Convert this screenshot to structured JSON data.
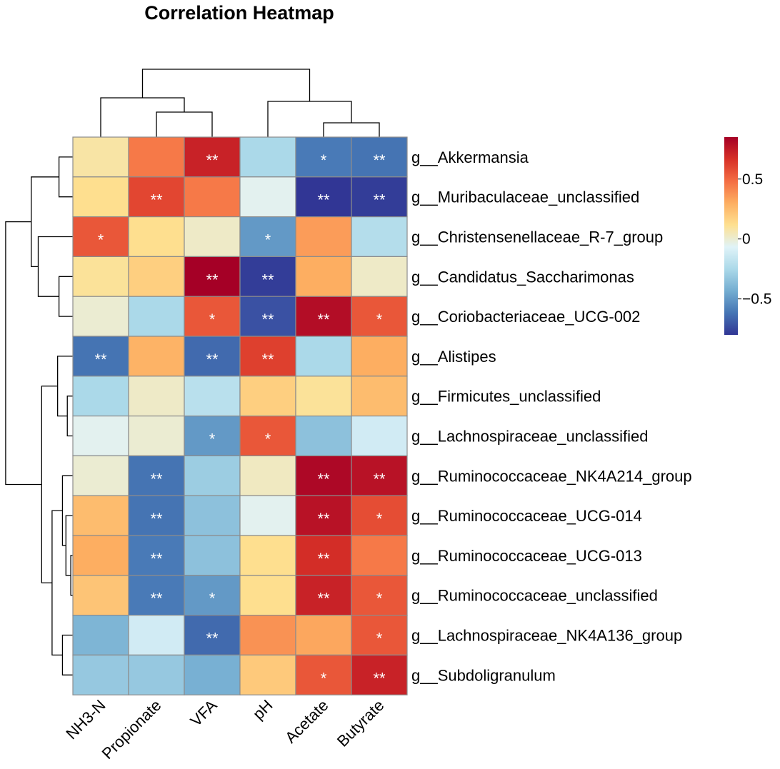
{
  "chart_data": {
    "type": "heatmap",
    "title": "Correlation Heatmap",
    "columns": [
      "NH3-N",
      "Propionate",
      "VFA",
      "pH",
      "Acetate",
      "Butyrate"
    ],
    "rows": [
      "g__Akkermansia",
      "g__Muribaculaceae_unclassified",
      "g__Christensenellaceae_R-7_group",
      "g__Candidatus_Saccharimonas",
      "g__Coriobacteriaceae_UCG-002",
      "g__Alistipes",
      "g__Firmicutes_unclassified",
      "g__Lachnospiraceae_unclassified",
      "g__Ruminococcaceae_NK4A214_group",
      "g__Ruminococcaceae_UCG-014",
      "g__Ruminococcaceae_UCG-013",
      "g__Ruminococcaceae_unclassified",
      "g__Lachnospiraceae_NK4A136_group",
      "g__Subdoligranulum"
    ],
    "values": [
      [
        0.08,
        0.45,
        0.72,
        -0.25,
        -0.6,
        -0.62
      ],
      [
        0.12,
        0.6,
        0.45,
        -0.05,
        -0.8,
        -0.78
      ],
      [
        0.55,
        0.12,
        0.02,
        -0.5,
        0.35,
        -0.22
      ],
      [
        0.1,
        0.18,
        0.85,
        -0.78,
        0.3,
        0.02
      ],
      [
        0.0,
        -0.25,
        0.55,
        -0.72,
        0.8,
        0.55
      ],
      [
        -0.62,
        0.28,
        -0.65,
        0.62,
        -0.25,
        0.3
      ],
      [
        -0.25,
        0.02,
        -0.2,
        0.18,
        0.1,
        0.25
      ],
      [
        -0.05,
        0.0,
        -0.5,
        0.55,
        -0.35,
        -0.12
      ],
      [
        0.0,
        -0.62,
        -0.3,
        0.03,
        0.82,
        0.78
      ],
      [
        0.25,
        -0.62,
        -0.35,
        -0.05,
        0.78,
        0.58
      ],
      [
        0.3,
        -0.6,
        -0.35,
        0.12,
        0.68,
        0.45
      ],
      [
        0.22,
        -0.6,
        -0.5,
        0.12,
        0.72,
        0.55
      ],
      [
        -0.4,
        -0.12,
        -0.65,
        0.38,
        0.32,
        0.55
      ],
      [
        -0.32,
        -0.32,
        -0.42,
        0.2,
        0.55,
        0.72
      ]
    ],
    "significance": [
      [
        "",
        "",
        "**",
        "",
        "*",
        "**"
      ],
      [
        "",
        "**",
        "",
        "",
        "**",
        "**"
      ],
      [
        "*",
        "",
        "",
        "*",
        "",
        ""
      ],
      [
        "",
        "",
        "**",
        "**",
        "",
        ""
      ],
      [
        "",
        "",
        "*",
        "**",
        "**",
        "*"
      ],
      [
        "**",
        "",
        "**",
        "**",
        "",
        ""
      ],
      [
        "",
        "",
        "",
        "",
        "",
        ""
      ],
      [
        "",
        "",
        "*",
        "*",
        "",
        ""
      ],
      [
        "",
        "**",
        "",
        "",
        "**",
        "**"
      ],
      [
        "",
        "**",
        "",
        "",
        "**",
        "*"
      ],
      [
        "",
        "**",
        "",
        "",
        "**",
        ""
      ],
      [
        "",
        "**",
        "*",
        "",
        "**",
        "*"
      ],
      [
        "",
        "",
        "**",
        "",
        "",
        "*"
      ],
      [
        "",
        "",
        "",
        "",
        "*",
        "**"
      ]
    ],
    "legend": {
      "range": [
        -0.8,
        0.85
      ],
      "ticks": [
        0.5,
        0,
        -0.5
      ],
      "tick_labels": [
        "0.5",
        "0",
        "−0.5"
      ],
      "colors": [
        "#313695",
        "#4575b4",
        "#74add1",
        "#abd9e9",
        "#e0f3f8",
        "#fee090",
        "#fdae61",
        "#f46d43",
        "#d73027",
        "#a50026"
      ]
    },
    "column_dendrogram": [
      [
        4,
        5,
        0.2
      ],
      [
        3,
        6,
        0.5
      ],
      [
        1,
        2,
        0.35
      ],
      [
        0,
        8,
        0.55
      ],
      [
        7,
        9,
        0.95
      ]
    ],
    "row_dendrogram": [
      [
        0,
        1,
        0.2
      ],
      [
        3,
        4,
        0.2
      ],
      [
        2,
        15,
        0.5
      ],
      [
        14,
        16,
        0.6
      ],
      [
        6,
        7,
        0.08
      ],
      [
        5,
        18,
        0.22
      ],
      [
        10,
        11,
        0.03
      ],
      [
        9,
        20,
        0.1
      ],
      [
        8,
        21,
        0.15
      ],
      [
        12,
        13,
        0.15
      ],
      [
        22,
        23,
        0.3
      ],
      [
        19,
        24,
        0.45
      ],
      [
        17,
        25,
        0.97
      ]
    ]
  }
}
